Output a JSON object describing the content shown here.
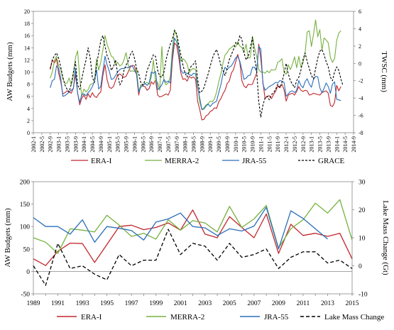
{
  "chart_data": [
    {
      "type": "line",
      "xlabel": "",
      "ylabel": "AW Budgets (mm)",
      "y2label": "TWSC (mm)",
      "ylim": [
        0,
        20
      ],
      "y2lim": [
        -8,
        6
      ],
      "yticks": [
        0,
        2,
        4,
        6,
        8,
        10,
        12,
        14,
        16,
        18,
        20
      ],
      "y2ticks": [
        -8,
        -6,
        -4,
        -2,
        0,
        2,
        4,
        6
      ],
      "x_tick_labels": [
        "2002-1",
        "2002-5",
        "2002-9",
        "2003-1",
        "2003-5",
        "2003-9",
        "2004-1",
        "2004-5",
        "2004-9",
        "2005-1",
        "2005-5",
        "2005-9",
        "2006-1",
        "2006-5",
        "2006-9",
        "2007-1",
        "2007-5",
        "2007-9",
        "2008-1",
        "2008-5",
        "2008-9",
        "2009-1",
        "2009-5",
        "2009-9",
        "2010-1",
        "2010-5",
        "2010-9",
        "2011-1",
        "2011-5",
        "2011-9",
        "2012-1",
        "2012-5",
        "2012-9",
        "2013-1",
        "2013-5",
        "2013-9",
        "2014-1",
        "2014-5",
        "2014-9"
      ],
      "x_start": "2002-09",
      "x_tick_start": "2002-01",
      "x_tick_step_months": 4,
      "legend_position": "bottom",
      "series": [
        {
          "name": "ERA-I",
          "color": "#c0272d",
          "axis": "left",
          "dash": "",
          "values": [
            10.4,
            12.0,
            11.5,
            12.2,
            9.8,
            8.4,
            6.4,
            6.6,
            6.9,
            6.7,
            6.5,
            7.4,
            9.6,
            6.6,
            4.6,
            5.7,
            6.2,
            5.5,
            6.4,
            5.8,
            6.6,
            6.0,
            5.8,
            6.4,
            6.7,
            9.4,
            11.2,
            8.8,
            7.5,
            7.3,
            7.6,
            8.6,
            9.5,
            9.7,
            9.4,
            9.1,
            9.3,
            10.0,
            10.8,
            11.1,
            11.0,
            9.6,
            6.2,
            7.9,
            7.7,
            7.6,
            7.0,
            7.3,
            8.4,
            8.0,
            8.7,
            6.2,
            5.9,
            6.0,
            6.2,
            6.4,
            6.2,
            7.0,
            11.9,
            14.8,
            14.4,
            12.5,
            9.9,
            8.8,
            8.9,
            8.5,
            9.3,
            9.0,
            9.2,
            8.8,
            5.2,
            3.8,
            2.1,
            2.2,
            2.8,
            3.0,
            3.5,
            3.7,
            4.1,
            4.0,
            5.1,
            5.6,
            6.4,
            7.0,
            8.1,
            8.5,
            9.8,
            10.4,
            11.6,
            12.9,
            11.6,
            8.6,
            7.7,
            7.4,
            8.0,
            7.9,
            8.0,
            8.9,
            9.8,
            14.6,
            12.2,
            8.3,
            5.6,
            6.0,
            6.1,
            5.6,
            6.3,
            6.8,
            7.7,
            7.4,
            8.0,
            7.1,
            5.2,
            6.2,
            6.4,
            6.5,
            6.2,
            6.8,
            7.6,
            7.0,
            6.8,
            7.0,
            6.9,
            6.2,
            6.3,
            6.5,
            6.4,
            6.3,
            6.2,
            6.6,
            6.8,
            6.9,
            6.5,
            4.5,
            4.3,
            5.0,
            7.8,
            6.9,
            7.6
          ]
        },
        {
          "name": "MERRA-2",
          "color": "#76b140",
          "axis": "left",
          "dash": "",
          "values": [
            9.0,
            10.0,
            11.9,
            12.6,
            11.0,
            10.4,
            8.9,
            8.1,
            8.2,
            9.0,
            7.9,
            9.4,
            12.4,
            13.5,
            9.0,
            6.0,
            7.2,
            6.7,
            7.1,
            7.9,
            8.1,
            8.3,
            12.2,
            10.3,
            11.6,
            13.6,
            16.0,
            14.6,
            13.6,
            12.6,
            12.4,
            11.2,
            11.6,
            11.0,
            11.2,
            12.0,
            13.2,
            11.2,
            10.1,
            10.2,
            10.1,
            10.6,
            6.8,
            7.8,
            7.9,
            8.1,
            8.3,
            8.0,
            9.2,
            12.0,
            8.4,
            8.3,
            7.0,
            14.2,
            8.5,
            7.9,
            8.2,
            9.2,
            13.8,
            17.0,
            16.0,
            13.8,
            11.8,
            12.2,
            11.9,
            11.3,
            9.9,
            10.4,
            10.6,
            10.4,
            7.9,
            5.0,
            3.8,
            4.1,
            4.6,
            4.8,
            5.2,
            5.1,
            5.6,
            6.7,
            8.4,
            9.7,
            11.4,
            12.8,
            13.2,
            13.8,
            14.0,
            14.4,
            14.1,
            15.0,
            14.3,
            14.0,
            13.2,
            14.6,
            12.3,
            12.4,
            15.9,
            14.0,
            12.6,
            10.4,
            10.0,
            10.0,
            9.8,
            10.2,
            9.9,
            10.4,
            10.3,
            10.4,
            11.6,
            11.8,
            12.2,
            10.0,
            9.6,
            11.2,
            10.4,
            11.3,
            12.5,
            10.7,
            12.6,
            10.8,
            11.5,
            13.2,
            16.6,
            16.8,
            14.2,
            16.2,
            18.6,
            15.8,
            17.0,
            13.6,
            15.6,
            15.3,
            14.8,
            12.4,
            11.6,
            12.2,
            15.2,
            16.4,
            16.8
          ]
        },
        {
          "name": "JRA-55",
          "color": "#2a6ebb",
          "axis": "left",
          "dash": "",
          "values": [
            7.4,
            8.6,
            8.8,
            11.0,
            10.6,
            9.0,
            6.0,
            6.1,
            6.4,
            6.7,
            7.0,
            7.3,
            10.6,
            6.5,
            5.0,
            6.3,
            6.4,
            6.1,
            6.6,
            7.0,
            7.6,
            8.4,
            10.4,
            7.2,
            7.6,
            10.1,
            12.6,
            11.2,
            10.2,
            8.8,
            8.9,
            9.4,
            10.0,
            10.4,
            10.6,
            10.6,
            10.8,
            10.7,
            11.0,
            11.0,
            10.3,
            9.6,
            6.7,
            7.5,
            7.8,
            8.1,
            7.8,
            8.2,
            10.0,
            9.8,
            10.1,
            7.1,
            7.4,
            7.9,
            8.8,
            8.3,
            8.5,
            8.2,
            12.8,
            15.6,
            15.0,
            13.6,
            10.4,
            9.8,
            9.9,
            9.8,
            9.6,
            9.4,
            9.8,
            9.7,
            7.4,
            5.7,
            3.8,
            3.9,
            4.4,
            4.7,
            4.3,
            4.8,
            5.0,
            5.2,
            6.6,
            7.9,
            9.6,
            10.8,
            10.4,
            10.8,
            11.0,
            11.6,
            12.3,
            12.6,
            11.8,
            10.4,
            8.8,
            9.0,
            9.4,
            9.5,
            10.8,
            10.8,
            10.1,
            14.2,
            13.8,
            8.0,
            7.0,
            7.3,
            7.6,
            7.8,
            8.0,
            8.3,
            8.2,
            8.6,
            8.5,
            8.3,
            6.0,
            6.4,
            6.8,
            6.9,
            6.6,
            7.0,
            8.6,
            7.8,
            7.4,
            8.4,
            8.9,
            8.0,
            7.5,
            8.8,
            9.3,
            9.2,
            7.4,
            6.6,
            7.3,
            8.2,
            7.6,
            6.5,
            8.0,
            8.4,
            5.5,
            5.4,
            5.3
          ]
        },
        {
          "name": "GRACE",
          "color": "#000000",
          "axis": "right",
          "dash": "3,2",
          "values": [
            -0.6,
            0.4,
            0.9,
            1.2,
            0.6,
            -0.4,
            -1.6,
            -2.5,
            -3.0,
            -3.3,
            -2.4,
            -1.0,
            0.2,
            -2.5,
            -3.0,
            -1.8,
            -0.6,
            0.4,
            1.8,
            0.6,
            -1.6,
            -2.2,
            -0.2,
            1.2,
            2.6,
            3.2,
            2.0,
            0.9,
            0.3,
            -0.8,
            -0.4,
            0.4,
            -1.2,
            -2.5,
            -2.1,
            -0.8,
            -0.2,
            0.2,
            1.0,
            1.4,
            0.6,
            -0.6,
            -1.2,
            -2.2,
            -2.5,
            -2.0,
            -0.8,
            -0.2,
            0.4,
            1.0,
            0.8,
            -0.8,
            -1.5,
            -1.6,
            -1.0,
            0.4,
            1.4,
            2.2,
            2.8,
            3.8,
            3.4,
            2.2,
            1.0,
            -0.2,
            -1.1,
            -1.6,
            -0.8,
            -0.3,
            -0.1,
            0.3,
            -1.8,
            -3.4,
            -3.2,
            -2.8,
            -2.0,
            -1.2,
            -0.3,
            0.6,
            1.2,
            1.6,
            0.8,
            -0.2,
            -0.8,
            -1.4,
            -0.6,
            0.4,
            1.0,
            1.6,
            2.4,
            2.2,
            3.2,
            2.8,
            1.2,
            0.4,
            0.8,
            1.8,
            3.0,
            0.6,
            -0.8,
            -4.4,
            -6.2,
            -4.8,
            -4.0,
            -3.8,
            -4.2,
            -3.6,
            -3.4,
            -3.0,
            -2.4,
            -2.8,
            -2.2,
            -1.2,
            0.0,
            -1.2,
            -2.0,
            -2.4,
            -2.8,
            -2.0,
            -1.6,
            -0.8,
            0.4,
            1.2,
            0.2,
            -0.6,
            -1.4,
            -1.8,
            -0.6,
            0.6,
            1.4,
            1.6,
            1.0,
            0.2,
            -0.4,
            -1.6,
            -2.0,
            -1.0,
            -0.4,
            -0.8,
            -1.8,
            -2.6
          ]
        }
      ]
    },
    {
      "type": "line",
      "xlabel": "",
      "ylabel": "AW Budgets (mm)",
      "y2label": "Lake Mass Change  (Gt)",
      "ylim": [
        -50,
        200
      ],
      "y2lim": [
        -10,
        30
      ],
      "yticks": [
        -50,
        0,
        50,
        100,
        150,
        200
      ],
      "y2ticks": [
        -10,
        0,
        10,
        20,
        30
      ],
      "x": [
        1989,
        1990,
        1991,
        1992,
        1993,
        1994,
        1995,
        1996,
        1997,
        1998,
        1999,
        2000,
        2001,
        2002,
        2003,
        2004,
        2005,
        2006,
        2007,
        2008,
        2009,
        2010,
        2011,
        2012,
        2013,
        2014,
        2015
      ],
      "x_tick_labels": [
        "1989",
        "1991",
        "1993",
        "1995",
        "1997",
        "1999",
        "2001",
        "2003",
        "2005",
        "2007",
        "2009",
        "2011",
        "2013",
        "2015"
      ],
      "legend_position": "bottom",
      "series": [
        {
          "name": "ERA-I",
          "color": "#c0272d",
          "axis": "left",
          "dash": "",
          "values": [
            28,
            13,
            45,
            63,
            62,
            20,
            60,
            100,
            103,
            93,
            98,
            108,
            92,
            137,
            83,
            75,
            122,
            98,
            75,
            128,
            40,
            105,
            80,
            85,
            78,
            85,
            28
          ]
        },
        {
          "name": "MERRA-2",
          "color": "#76b140",
          "axis": "left",
          "dash": "",
          "values": [
            75,
            65,
            40,
            95,
            92,
            88,
            125,
            103,
            78,
            85,
            72,
            115,
            92,
            113,
            108,
            88,
            145,
            98,
            117,
            147,
            52,
            95,
            115,
            152,
            130,
            160,
            70
          ]
        },
        {
          "name": "JRA-55",
          "color": "#2a6ebb",
          "axis": "left",
          "dash": "",
          "values": [
            120,
            100,
            100,
            83,
            115,
            65,
            100,
            96,
            91,
            70,
            110,
            117,
            130,
            100,
            97,
            80,
            95,
            90,
            101,
            143,
            50,
            135,
            118,
            95,
            72,
            null,
            null
          ]
        },
        {
          "name": "Lake Mass Change",
          "color": "#000000",
          "axis": "right",
          "dash": "5,3",
          "values": [
            0,
            -7,
            8,
            -1,
            0,
            -3,
            -5,
            4,
            0,
            2,
            2,
            13,
            4,
            8,
            7,
            2,
            8,
            3,
            4,
            6,
            -1,
            3,
            5,
            5,
            1,
            2,
            -1
          ]
        }
      ]
    }
  ]
}
